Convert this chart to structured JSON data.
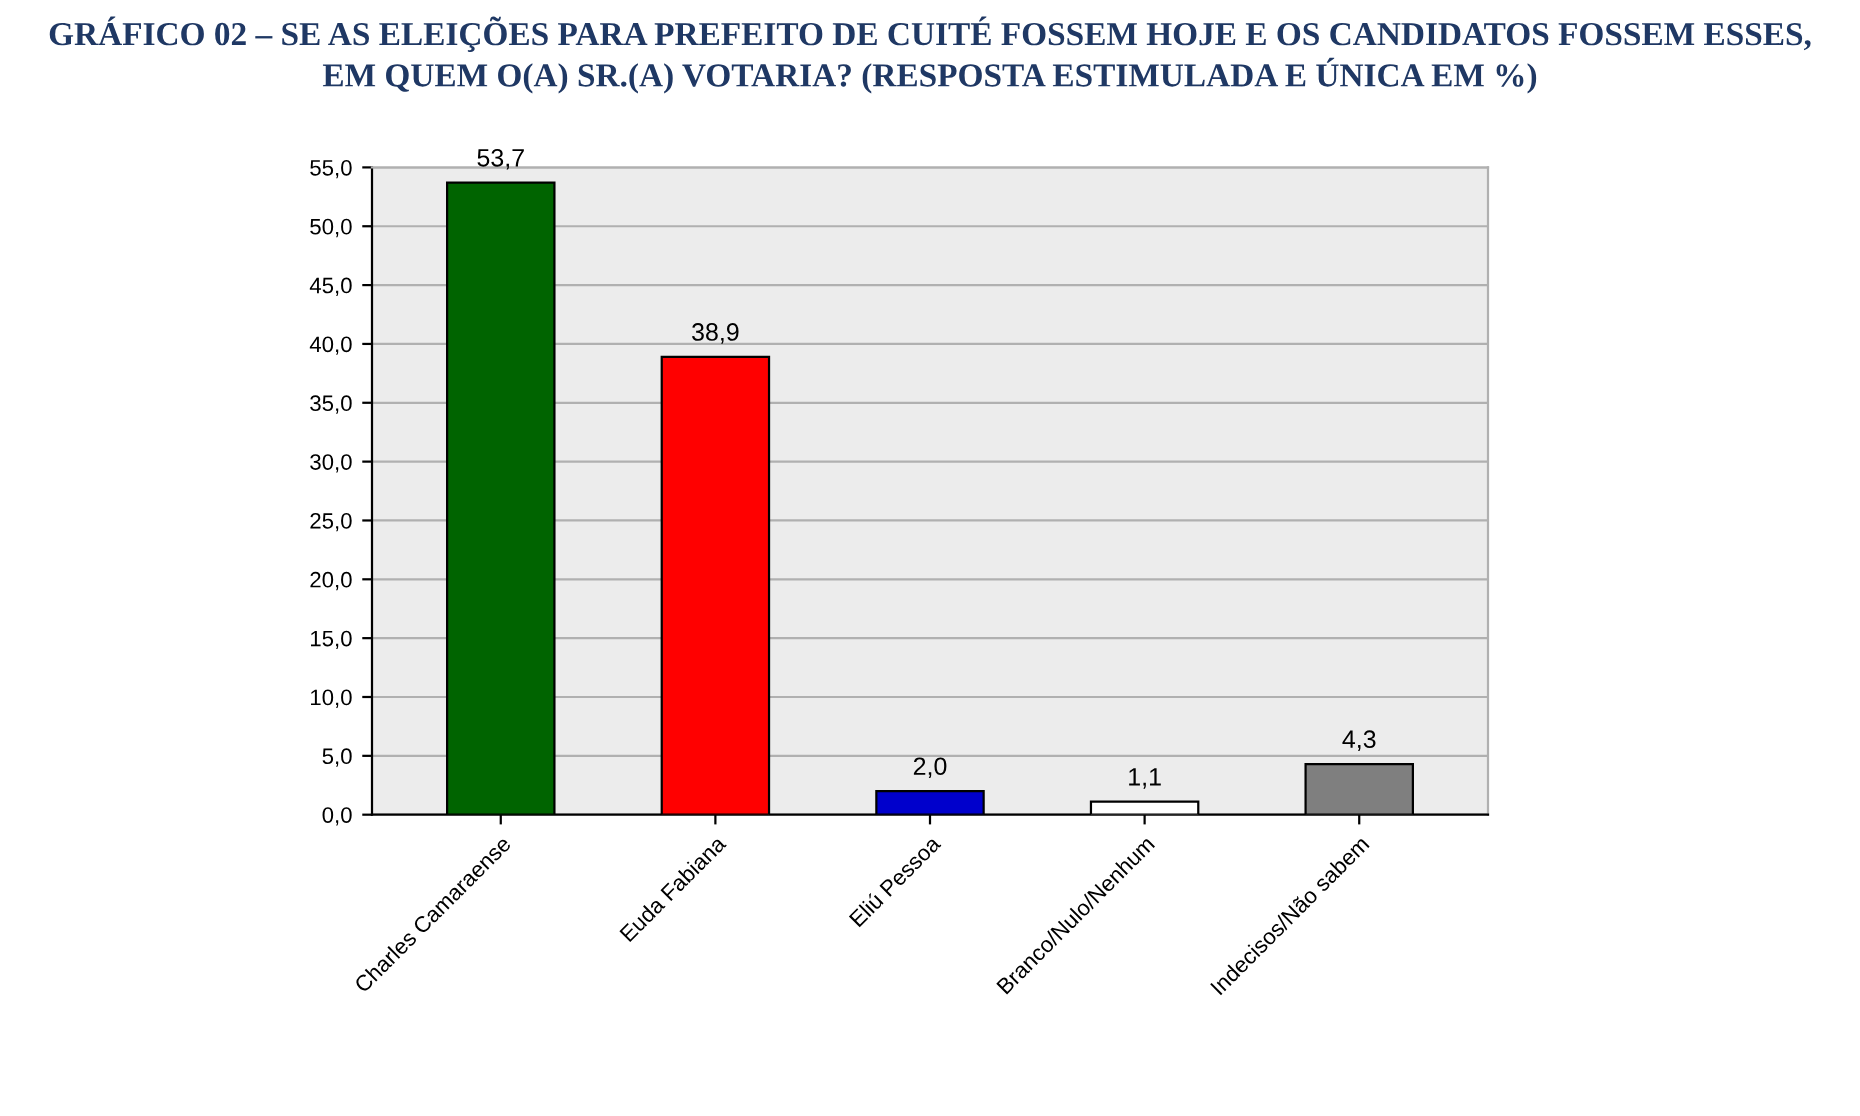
{
  "chart_data": {
    "type": "bar",
    "title": "GRÁFICO 02 – SE AS ELEIÇÕES PARA PREFEITO DE CUITÉ FOSSEM HOJE E OS CANDIDATOS FOSSEM ESSES,\nEM QUEM O(A) SR.(A) VOTARIA? (RESPOSTA ESTIMULADA E ÚNICA EM %)",
    "categories": [
      "Charles Camaraense",
      "Euda Fabiana",
      "Eliú Pessoa",
      "Branco/Nulo/Nenhum",
      "Indecisos/Não sabem"
    ],
    "values": [
      53.7,
      38.9,
      2.0,
      1.1,
      4.3
    ],
    "colors": [
      "#006400",
      "#ff0000",
      "#0000cc",
      "#ffffff",
      "#7f7f7f"
    ],
    "value_labels": [
      "53,7",
      "38,9",
      "2,0",
      "1,1",
      "4,3"
    ],
    "ylim": [
      0,
      55
    ],
    "yticks": [
      {
        "value": 0,
        "label": "0,0"
      },
      {
        "value": 5,
        "label": "5,0"
      },
      {
        "value": 10,
        "label": "10,0"
      },
      {
        "value": 15,
        "label": "15,0"
      },
      {
        "value": 20,
        "label": "20,0"
      },
      {
        "value": 25,
        "label": "25,0"
      },
      {
        "value": 30,
        "label": "30,0"
      },
      {
        "value": 35,
        "label": "35,0"
      },
      {
        "value": 40,
        "label": "40,0"
      },
      {
        "value": 45,
        "label": "45,0"
      },
      {
        "value": 50,
        "label": "50,0"
      },
      {
        "value": 55,
        "label": "55,0"
      }
    ],
    "grid": "y"
  }
}
